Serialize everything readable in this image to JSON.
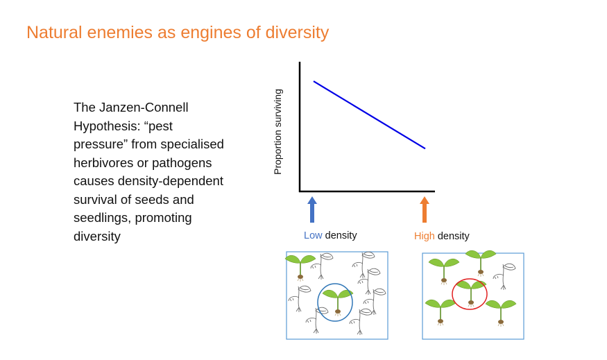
{
  "slide": {
    "title": "Natural enemies as engines of diversity",
    "body": "The Janzen-Connell Hypothesis: “pest pressure” from specialised herbivores or pathogens causes density-dependent survival of seeds and seedlings, promoting diversity"
  },
  "diagram": {
    "ylabel": "Proportion surviving",
    "low_label": {
      "highlight": "Low",
      "rest": " density"
    },
    "high_label": {
      "highlight": "High",
      "rest": " density"
    }
  },
  "chart_data": {
    "type": "line",
    "title": "",
    "xlabel": "",
    "ylabel": "Proportion surviving",
    "x_categories": [
      "Low density",
      "High density"
    ],
    "series": [
      {
        "values": [
          0.85,
          0.33
        ]
      }
    ],
    "colors": {
      "line": "#0000E6",
      "low": "#4472C4",
      "high": "#ED7D31",
      "low_circle": "#2E75B6",
      "high_circle": "#E02020"
    }
  }
}
